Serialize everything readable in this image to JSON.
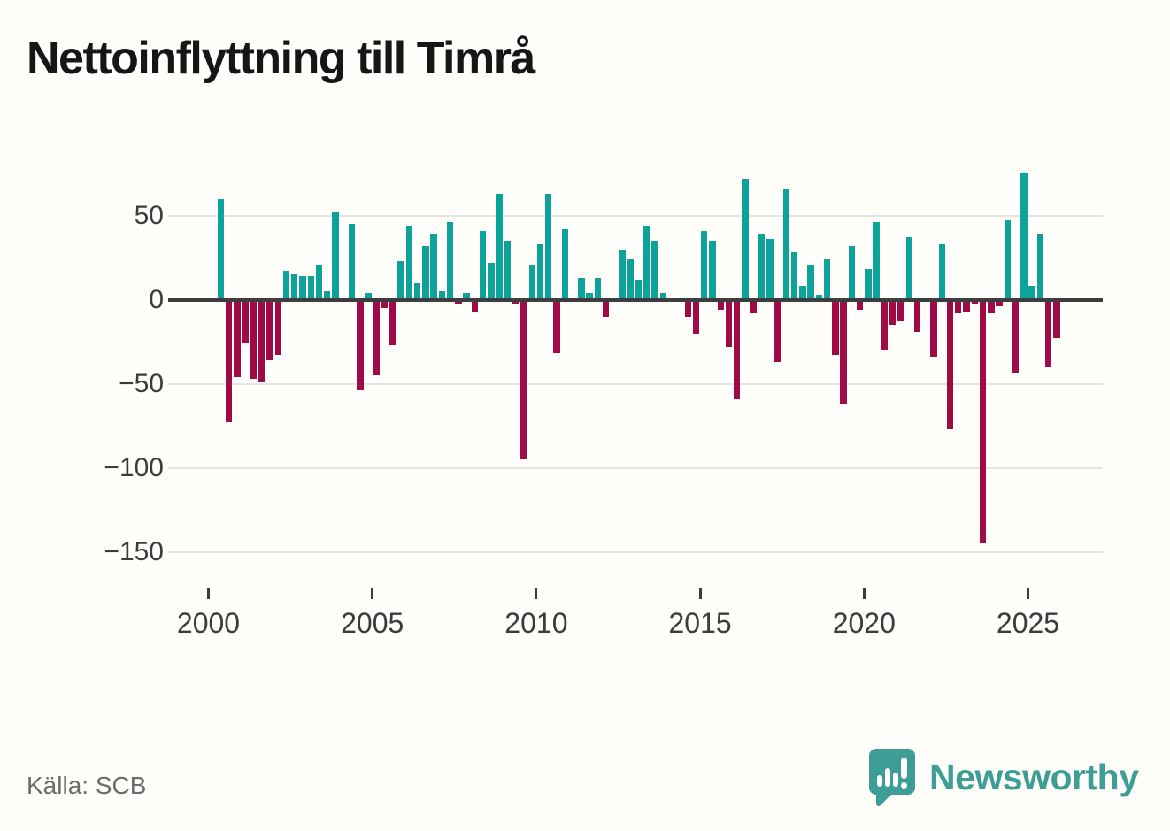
{
  "title": "Nettoinflyttning till Timrå",
  "source_note": "Källa: SCB",
  "brand": {
    "name": "Newsworthy",
    "icon": "newsworthy-speech-bubble-barchart-icon"
  },
  "colors": {
    "positive_bar": "#0da29a",
    "negative_bar": "#a00a45",
    "zero_line": "#3d3d3d",
    "gridline": "#e7e5e2",
    "brand_teal": "#3e9e96",
    "background": "#fffefa"
  },
  "chart_data": {
    "type": "bar",
    "title": "Nettoinflyttning till Timrå",
    "xlabel": "",
    "ylabel": "",
    "frequency": "quarterly",
    "grid": true,
    "legend": false,
    "ylim": [
      -160,
      110
    ],
    "y_ticks": [
      50,
      0,
      -50,
      -100,
      -150
    ],
    "y_tick_labels": [
      "50",
      "0",
      "−50",
      "−100",
      "−150"
    ],
    "x_tick_years": [
      2000,
      2005,
      2010,
      2015,
      2020,
      2025
    ],
    "x_tick_labels": [
      "2000",
      "2005",
      "2010",
      "2015",
      "2020",
      "2025"
    ],
    "categories": [
      "2000 Q1",
      "2000 Q2",
      "2000 Q3",
      "2000 Q4",
      "2001 Q1",
      "2001 Q2",
      "2001 Q3",
      "2001 Q4",
      "2002 Q1",
      "2002 Q2",
      "2002 Q3",
      "2002 Q4",
      "2003 Q1",
      "2003 Q2",
      "2003 Q3",
      "2003 Q4",
      "2004 Q1",
      "2004 Q2",
      "2004 Q3",
      "2004 Q4",
      "2005 Q1",
      "2005 Q2",
      "2005 Q3",
      "2005 Q4",
      "2006 Q1",
      "2006 Q2",
      "2006 Q3",
      "2006 Q4",
      "2007 Q1",
      "2007 Q2",
      "2007 Q3",
      "2007 Q4",
      "2008 Q1",
      "2008 Q2",
      "2008 Q3",
      "2008 Q4",
      "2009 Q1",
      "2009 Q2",
      "2009 Q3",
      "2009 Q4",
      "2010 Q1",
      "2010 Q2",
      "2010 Q3",
      "2010 Q4",
      "2011 Q1",
      "2011 Q2",
      "2011 Q3",
      "2011 Q4",
      "2012 Q1",
      "2012 Q2",
      "2012 Q3",
      "2012 Q4",
      "2013 Q1",
      "2013 Q2",
      "2013 Q3",
      "2013 Q4",
      "2014 Q1",
      "2014 Q2",
      "2014 Q3",
      "2014 Q4",
      "2015 Q1",
      "2015 Q2",
      "2015 Q3",
      "2015 Q4",
      "2016 Q1",
      "2016 Q2",
      "2016 Q3",
      "2016 Q4",
      "2017 Q1",
      "2017 Q2",
      "2017 Q3",
      "2017 Q4",
      "2018 Q1",
      "2018 Q2",
      "2018 Q3",
      "2018 Q4",
      "2019 Q1",
      "2019 Q2",
      "2019 Q3",
      "2019 Q4",
      "2020 Q1",
      "2020 Q2",
      "2020 Q3",
      "2020 Q4",
      "2021 Q1",
      "2021 Q2",
      "2021 Q3",
      "2021 Q4",
      "2022 Q1",
      "2022 Q2",
      "2022 Q3",
      "2022 Q4",
      "2023 Q1",
      "2023 Q2",
      "2023 Q3",
      "2023 Q4",
      "2024 Q1",
      "2024 Q2",
      "2024 Q3",
      "2024 Q4",
      "2025 Q1",
      "2025 Q2",
      "2025 Q3",
      "2025 Q4"
    ],
    "values": [
      0,
      60,
      -73,
      -46,
      -26,
      -47,
      -49,
      -36,
      -33,
      17,
      15,
      14,
      14,
      21,
      5,
      52,
      0,
      45,
      -54,
      4,
      -45,
      -5,
      -27,
      23,
      44,
      10,
      32,
      39,
      5,
      46,
      -3,
      4,
      -7,
      41,
      22,
      63,
      35,
      -3,
      -95,
      21,
      33,
      63,
      -32,
      42,
      0,
      13,
      4,
      13,
      -10,
      0,
      29,
      24,
      12,
      44,
      35,
      4,
      0,
      0,
      -10,
      -20,
      41,
      35,
      -6,
      -28,
      -59,
      72,
      -8,
      39,
      36,
      -37,
      66,
      28,
      8,
      21,
      3,
      24,
      -33,
      -62,
      32,
      -6,
      18,
      46,
      -30,
      -15,
      -13,
      37,
      -19,
      0,
      -34,
      33,
      -77,
      -8,
      -7,
      -3,
      -145,
      -8,
      -4,
      47,
      -44,
      75,
      8,
      39,
      -40,
      -23
    ]
  }
}
